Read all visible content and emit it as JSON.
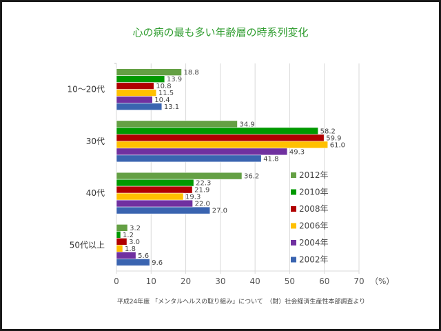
{
  "chart_data": {
    "type": "bar",
    "orientation": "horizontal",
    "title": "心の病の最も多い年齢層の時系列変化",
    "categories": [
      "10～20代",
      "30代",
      "40代",
      "50代以上"
    ],
    "series": [
      {
        "name": "2012年",
        "color": "#64a044",
        "values": [
          18.8,
          34.9,
          36.2,
          3.2
        ]
      },
      {
        "name": "2010年",
        "color": "#009900",
        "values": [
          13.9,
          58.2,
          22.3,
          1.2
        ]
      },
      {
        "name": "2008年",
        "color": "#b00000",
        "values": [
          10.8,
          59.9,
          21.9,
          3.0
        ]
      },
      {
        "name": "2006年",
        "color": "#ffc000",
        "values": [
          11.5,
          61.0,
          19.3,
          1.8
        ]
      },
      {
        "name": "2004年",
        "color": "#7030a0",
        "values": [
          10.4,
          49.3,
          22.0,
          5.6
        ]
      },
      {
        "name": "2002年",
        "color": "#3a64b0",
        "values": [
          13.1,
          41.8,
          27.0,
          9.6
        ]
      }
    ],
    "xlabel": "（%）",
    "xlim": [
      0,
      70
    ],
    "xticks": [
      "0",
      "10",
      "20",
      "30",
      "40",
      "50",
      "60",
      "70"
    ],
    "grid": true,
    "legend_position": "right-inside"
  },
  "source_note": "平成24年度 「メンタルヘルスの取り組み」について　（財）社会経済生産性本部調査より"
}
